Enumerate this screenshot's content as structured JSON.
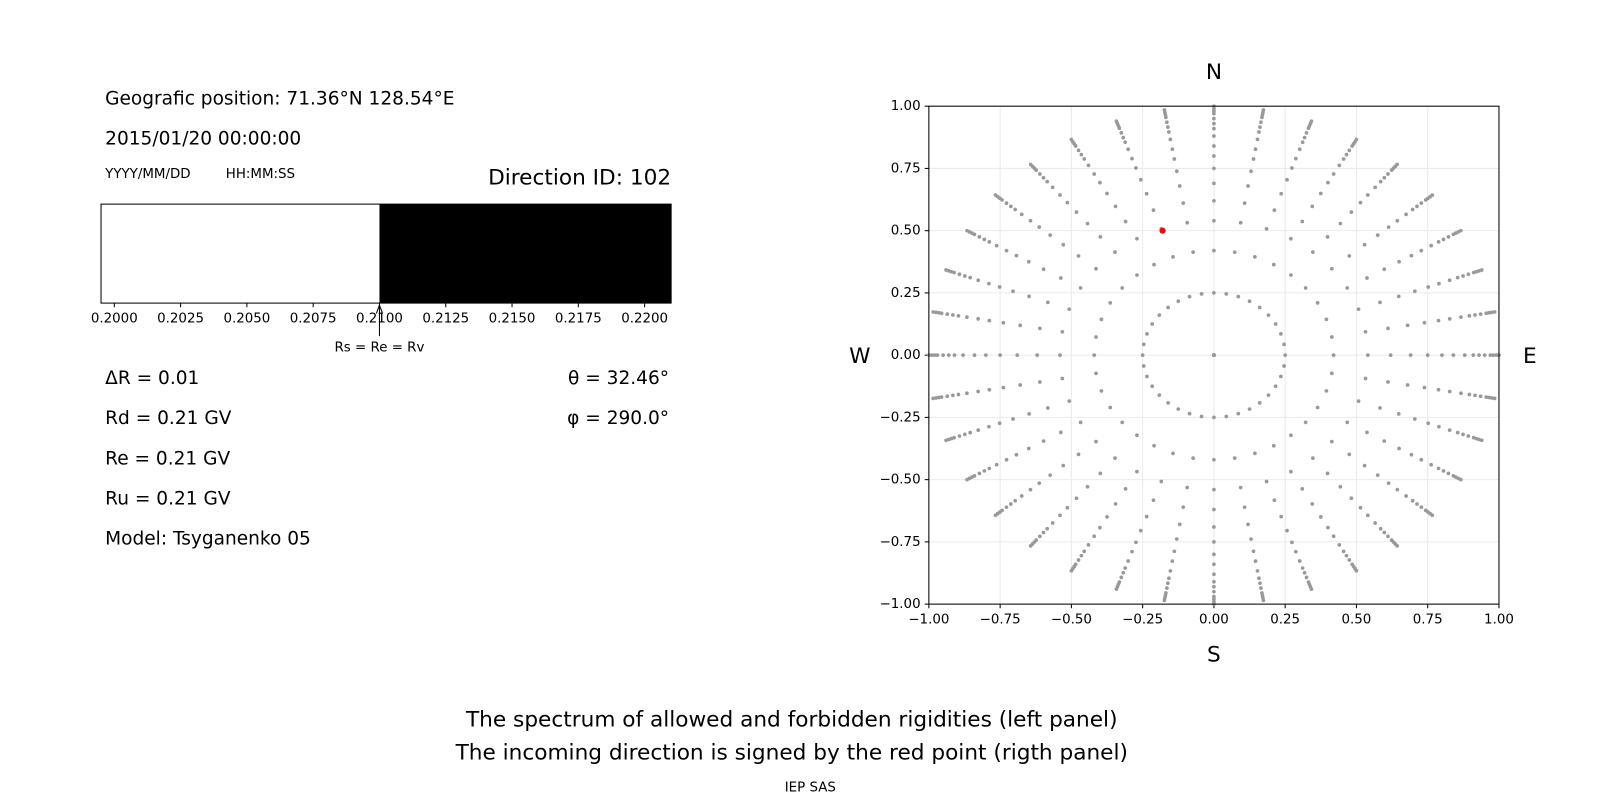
{
  "header": {
    "position": "Geografic position: 71.36°N 128.54°E",
    "datetime": "2015/01/20 00:00:00",
    "date_format": "YYYY/MM/DD",
    "time_format": "HH:MM:SS",
    "direction_id": "Direction ID: 102"
  },
  "parameters": {
    "delta_r": "ΔR = 0.01",
    "rd": "Rd = 0.21 GV",
    "re": "Re = 0.21 GV",
    "ru": "Ru = 0.21 GV",
    "model": "Model: Tsyganenko 05",
    "theta": "θ = 32.46°",
    "phi": "φ = 290.0°"
  },
  "chart_data": [
    {
      "type": "spectrum",
      "xlim": [
        0.1995,
        0.221
      ],
      "xticks": [
        {
          "value": 0.2,
          "label": "0.2000"
        },
        {
          "value": 0.2025,
          "label": "0.2025"
        },
        {
          "value": 0.205,
          "label": "0.2050"
        },
        {
          "value": 0.2075,
          "label": "0.2075"
        },
        {
          "value": 0.21,
          "label": "0.2100"
        },
        {
          "value": 0.2125,
          "label": "0.2125"
        },
        {
          "value": 0.215,
          "label": "0.2150"
        },
        {
          "value": 0.2175,
          "label": "0.2175"
        },
        {
          "value": 0.22,
          "label": "0.2200"
        }
      ],
      "segments": [
        {
          "range": [
            0.1995,
            0.21
          ],
          "color": "#ffffff"
        },
        {
          "range": [
            0.21,
            0.221
          ],
          "color": "#000000"
        }
      ],
      "marker": {
        "value": 0.21,
        "label": "Rs = Re = Rv"
      }
    },
    {
      "type": "polar-scatter",
      "xlim": [
        -1,
        1
      ],
      "ylim": [
        -1,
        1
      ],
      "xticks": [
        {
          "value": -1,
          "label": "−1.00"
        },
        {
          "value": -0.75,
          "label": "−0.75"
        },
        {
          "value": -0.5,
          "label": "−0.50"
        },
        {
          "value": -0.25,
          "label": "−0.25"
        },
        {
          "value": 0,
          "label": "0.00"
        },
        {
          "value": 0.25,
          "label": "0.25"
        },
        {
          "value": 0.5,
          "label": "0.50"
        },
        {
          "value": 0.75,
          "label": "0.75"
        },
        {
          "value": 1,
          "label": "1.00"
        }
      ],
      "yticks": [
        {
          "value": -1,
          "label": "−1.00"
        },
        {
          "value": -0.75,
          "label": "−0.75"
        },
        {
          "value": -0.5,
          "label": "−0.50"
        },
        {
          "value": -0.25,
          "label": "−0.25"
        },
        {
          "value": 0,
          "label": "0.00"
        },
        {
          "value": 0.25,
          "label": "0.25"
        },
        {
          "value": 0.5,
          "label": "0.50"
        },
        {
          "value": 0.75,
          "label": "0.75"
        },
        {
          "value": 1,
          "label": "1.00"
        }
      ],
      "grid": true,
      "compass": {
        "north": "N",
        "south": "S",
        "west": "W",
        "east": "E"
      },
      "rings": [
        0,
        0.25,
        0.42,
        0.54,
        0.62,
        0.69,
        0.75,
        0.8,
        0.84,
        0.88,
        0.91,
        0.93,
        0.95,
        0.97,
        0.98,
        0.99,
        1
      ],
      "azimuths": [
        0,
        10,
        20,
        30,
        40,
        50,
        60,
        70,
        80,
        90,
        100,
        110,
        120,
        130,
        140,
        150,
        160,
        170,
        180,
        190,
        200,
        210,
        220,
        230,
        240,
        250,
        260,
        270,
        280,
        290,
        300,
        310,
        320,
        330,
        340,
        350
      ],
      "color": "#999999",
      "highlight": {
        "x": -0.18,
        "y": 0.5,
        "color": "#ff0000"
      }
    }
  ],
  "footer": {
    "line1": "The spectrum of allowed and forbidden rigidities (left panel)",
    "line2": "The incoming direction is signed by the red point (rigth panel)",
    "credit": "IEP SAS"
  }
}
